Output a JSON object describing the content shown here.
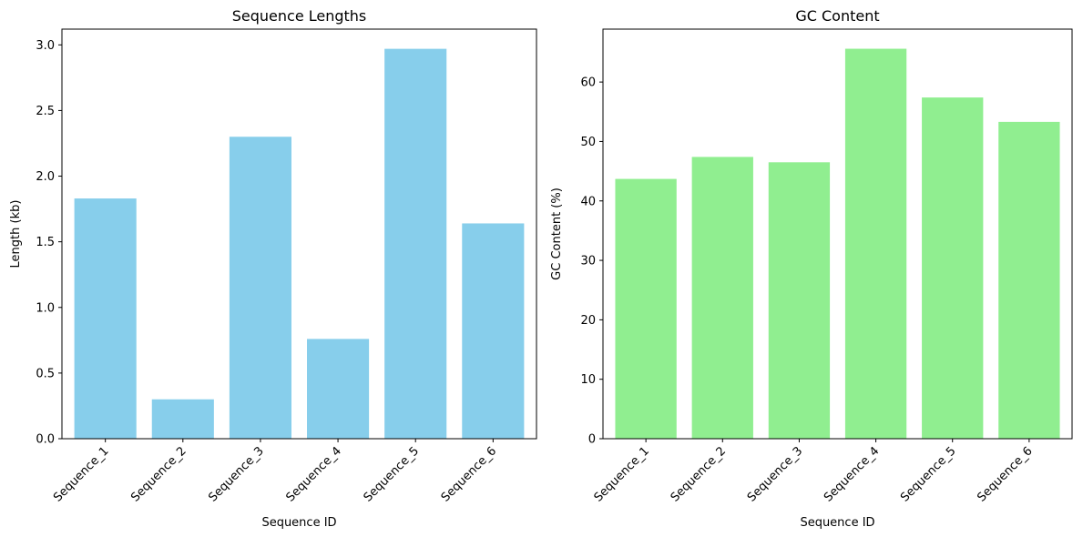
{
  "chart_data": [
    {
      "type": "bar",
      "title": "Sequence Lengths",
      "xlabel": "Sequence ID",
      "ylabel": "Length (kb)",
      "categories": [
        "Sequence_1",
        "Sequence_2",
        "Sequence_3",
        "Sequence_4",
        "Sequence_5",
        "Sequence_6"
      ],
      "values": [
        1.83,
        0.3,
        2.3,
        0.76,
        2.97,
        1.64
      ],
      "ylim": [
        0,
        3.12
      ],
      "yticks": [
        0.0,
        0.5,
        1.0,
        1.5,
        2.0,
        2.5,
        3.0
      ],
      "ytick_labels": [
        "0.0",
        "0.5",
        "1.0",
        "1.5",
        "2.0",
        "2.5",
        "3.0"
      ],
      "color": "#87ceeb",
      "grid": false,
      "legend": "none"
    },
    {
      "type": "bar",
      "title": "GC Content",
      "xlabel": "Sequence ID",
      "ylabel": "GC Content (%)",
      "categories": [
        "Sequence_1",
        "Sequence_2",
        "Sequence_3",
        "Sequence_4",
        "Sequence_5",
        "Sequence_6"
      ],
      "values": [
        43.7,
        47.4,
        46.5,
        65.6,
        57.4,
        53.3
      ],
      "ylim": [
        0,
        68.9
      ],
      "yticks": [
        0,
        10,
        20,
        30,
        40,
        50,
        60
      ],
      "ytick_labels": [
        "0",
        "10",
        "20",
        "30",
        "40",
        "50",
        "60"
      ],
      "color": "#90ee90",
      "grid": false,
      "legend": "none"
    }
  ]
}
